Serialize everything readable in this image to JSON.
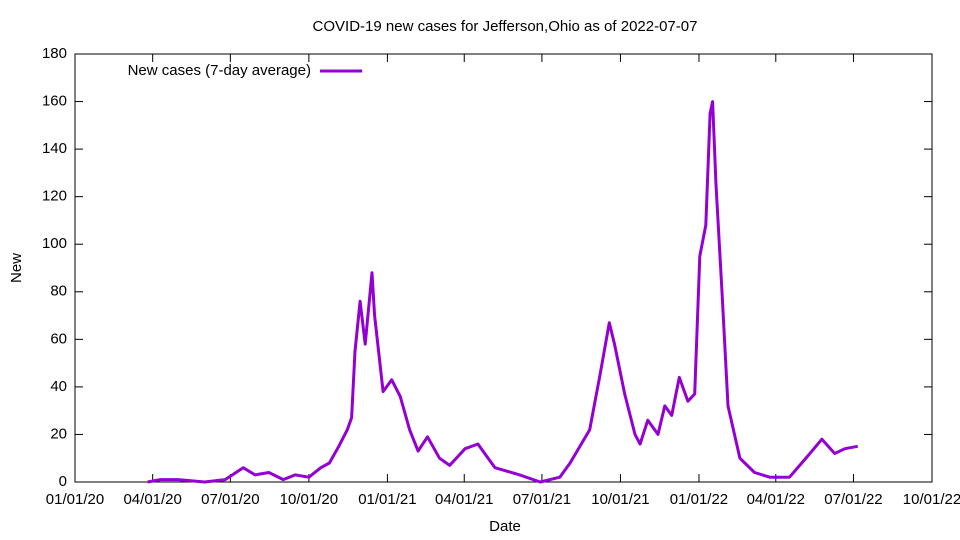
{
  "chart_data": {
    "type": "line",
    "title": "COVID-19 new cases for Jefferson,Ohio as of 2022-07-07",
    "xlabel": "Date",
    "ylabel": "New",
    "legend": "top-left",
    "x": [
      "2020-03-26",
      "2020-04-10",
      "2020-05-01",
      "2020-06-01",
      "2020-06-25",
      "2020-07-16",
      "2020-07-30",
      "2020-08-15",
      "2020-09-01",
      "2020-09-15",
      "2020-10-01",
      "2020-10-15",
      "2020-10-25",
      "2020-11-05",
      "2020-11-15",
      "2020-11-20",
      "2020-11-24",
      "2020-11-30",
      "2020-12-06",
      "2020-12-14",
      "2020-12-17",
      "2020-12-27",
      "2021-01-06",
      "2021-01-16",
      "2021-01-27",
      "2021-02-06",
      "2021-02-17",
      "2021-03-03",
      "2021-03-15",
      "2021-04-02",
      "2021-04-17",
      "2021-04-25",
      "2021-05-07",
      "2021-06-05",
      "2021-06-29",
      "2021-07-22",
      "2021-08-03",
      "2021-08-26",
      "2021-09-07",
      "2021-09-18",
      "2021-09-24",
      "2021-10-06",
      "2021-10-18",
      "2021-10-24",
      "2021-11-02",
      "2021-11-14",
      "2021-11-22",
      "2021-11-30",
      "2021-12-09",
      "2021-12-19",
      "2021-12-27",
      "2022-01-02",
      "2022-01-09",
      "2022-01-14",
      "2022-01-17",
      "2022-01-21",
      "2022-01-28",
      "2022-02-04",
      "2022-02-18",
      "2022-03-07",
      "2022-03-25",
      "2022-04-17",
      "2022-04-29",
      "2022-05-11",
      "2022-05-25",
      "2022-06-09",
      "2022-06-21",
      "2022-07-06"
    ],
    "series": [
      {
        "name": "New cases (7-day average)",
        "color": "#9400d3",
        "values": [
          0,
          1,
          1,
          0,
          1,
          6,
          3,
          4,
          1,
          3,
          2,
          6,
          8,
          15,
          22,
          27,
          55,
          76,
          58,
          88,
          70,
          38,
          43,
          36,
          22,
          13,
          19,
          10,
          7,
          14,
          16,
          12,
          6,
          3,
          0,
          2,
          8,
          22,
          45,
          67,
          58,
          37,
          20,
          16,
          26,
          20,
          32,
          28,
          44,
          34,
          37,
          95,
          108,
          155,
          160,
          125,
          80,
          32,
          10,
          4,
          2,
          2,
          7,
          12,
          18,
          12,
          14,
          15
        ]
      }
    ],
    "xlim": [
      "2020-01-01",
      "2022-10-01"
    ],
    "xticks": [
      {
        "value": "2020-01-01",
        "label": "01/01/20"
      },
      {
        "value": "2020-04-01",
        "label": "04/01/20"
      },
      {
        "value": "2020-07-01",
        "label": "07/01/20"
      },
      {
        "value": "2020-10-01",
        "label": "10/01/20"
      },
      {
        "value": "2021-01-01",
        "label": "01/01/21"
      },
      {
        "value": "2021-04-01",
        "label": "04/01/21"
      },
      {
        "value": "2021-07-01",
        "label": "07/01/21"
      },
      {
        "value": "2021-10-01",
        "label": "10/01/21"
      },
      {
        "value": "2022-01-01",
        "label": "01/01/22"
      },
      {
        "value": "2022-04-01",
        "label": "04/01/22"
      },
      {
        "value": "2022-07-01",
        "label": "07/01/22"
      },
      {
        "value": "2022-10-01",
        "label": "10/01/22"
      }
    ],
    "ylim": [
      0,
      180
    ],
    "yticks": [
      0,
      20,
      40,
      60,
      80,
      100,
      120,
      140,
      160,
      180
    ],
    "grid": false
  }
}
